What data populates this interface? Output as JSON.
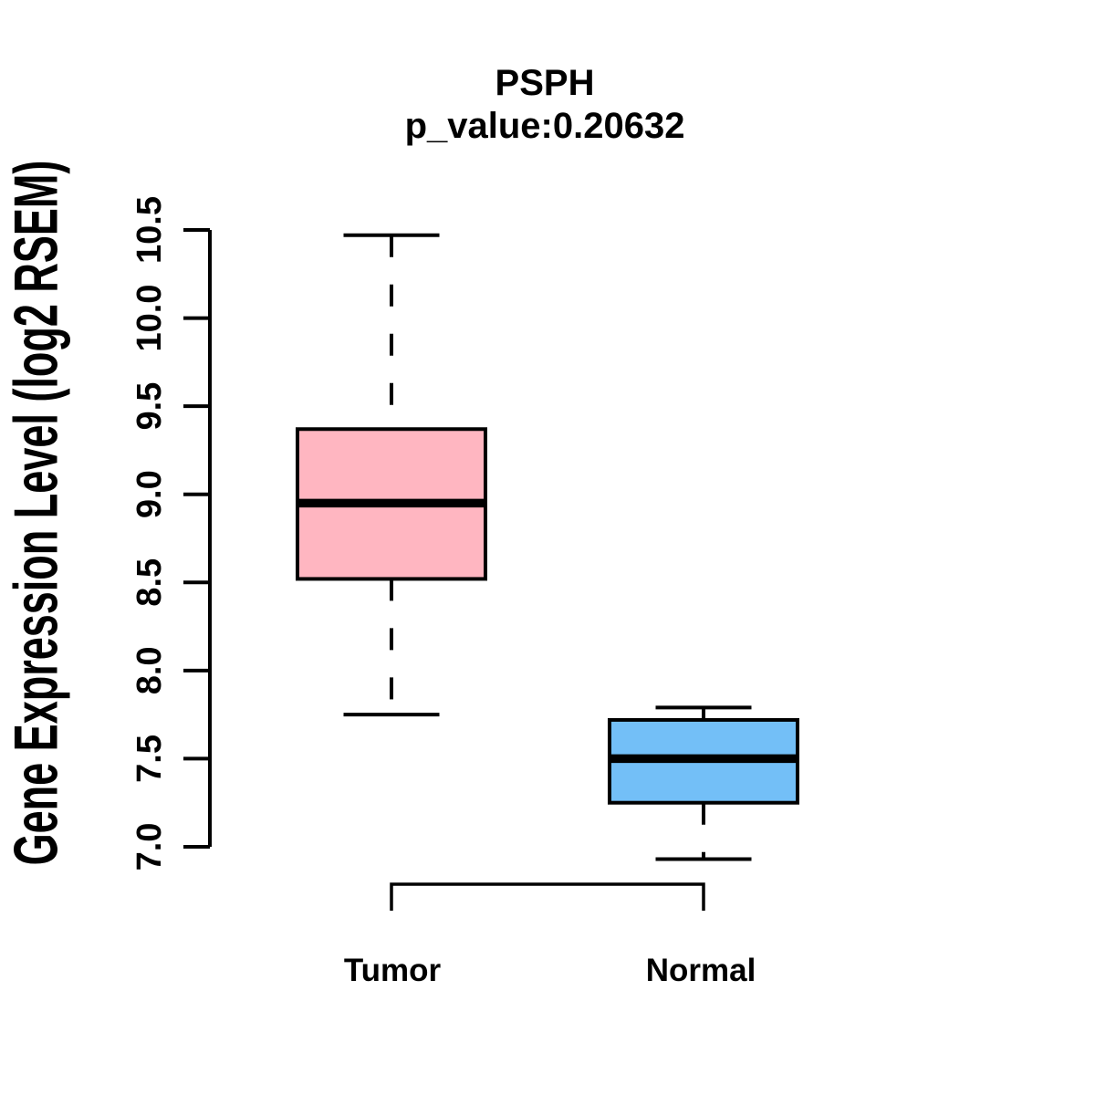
{
  "chart_data": {
    "type": "boxplot",
    "title": "PSPH",
    "subtitle": "p_value:0.20632",
    "p_value": 0.20632,
    "gene": "PSPH",
    "ylabel": "Gene Expression Level (log2 RSEM)",
    "xlabel": "",
    "categories": [
      "Tumor",
      "Normal"
    ],
    "series": [
      {
        "name": "Tumor",
        "fill_color": "#FFB6C1",
        "lower_whisker": 7.75,
        "q1": 8.52,
        "median": 8.95,
        "q3": 9.37,
        "upper_whisker": 10.47
      },
      {
        "name": "Normal",
        "fill_color": "#73BFF7",
        "lower_whisker": 6.93,
        "q1": 7.25,
        "median": 7.5,
        "q3": 7.72,
        "upper_whisker": 7.79
      }
    ],
    "yticks": [
      7.0,
      7.5,
      8.0,
      8.5,
      9.0,
      9.5,
      10.0,
      10.5
    ],
    "ytick_labels": [
      "7.0",
      "7.5",
      "8.0",
      "8.5",
      "9.0",
      "9.5",
      "10.0",
      "10.5"
    ],
    "ylim": [
      6.85,
      10.55
    ],
    "grid": false,
    "legend": "none",
    "whisker_style": "dashed",
    "comparison_bracket": {
      "between": [
        "Tumor",
        "Normal"
      ]
    },
    "colors": {
      "outline": "#000000",
      "axis": "#000000",
      "text": "#000000",
      "background": "#ffffff"
    }
  }
}
